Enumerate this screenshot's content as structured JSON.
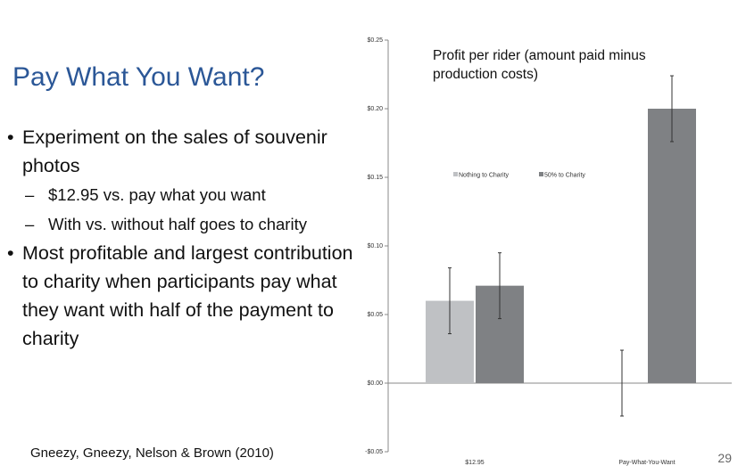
{
  "slide": {
    "title": "Pay What You Want?",
    "bullets": [
      {
        "text": "Experiment on the sales of souvenir photos",
        "subs": [
          "$12.95 vs. pay what you want",
          "With vs. without half goes to charity"
        ]
      },
      {
        "text": "Most profitable and largest contribution to charity when participants pay what they want with half of the payment to charity"
      }
    ],
    "citation": "Gneezy, Gneezy, Nelson & Brown (2010)",
    "page_number": 29
  },
  "chart_data": {
    "type": "bar",
    "title": "Profit per rider (amount paid minus production costs)",
    "categories": [
      "$12.95",
      "Pay-What-You-Want"
    ],
    "series": [
      {
        "name": "Nothing to Charity",
        "color": "#bfc1c4",
        "values": [
          0.06,
          0.0
        ],
        "errors": [
          0.024,
          0.024
        ]
      },
      {
        "name": "50% to Charity",
        "color": "#7f8184",
        "values": [
          0.071,
          0.2
        ],
        "errors": [
          0.024,
          0.024
        ]
      }
    ],
    "ylim": [
      -0.05,
      0.25
    ],
    "yticks": [
      {
        "value": -0.05,
        "label": "-$0.05"
      },
      {
        "value": 0,
        "label": "$0.00"
      },
      {
        "value": 0.05,
        "label": "$0.05"
      },
      {
        "value": 0.1,
        "label": "$0.10"
      },
      {
        "value": 0.15,
        "label": "$0.15"
      },
      {
        "value": 0.2,
        "label": "$0.20"
      },
      {
        "value": 0.25,
        "label": "$0.25"
      }
    ],
    "legend": "top"
  }
}
